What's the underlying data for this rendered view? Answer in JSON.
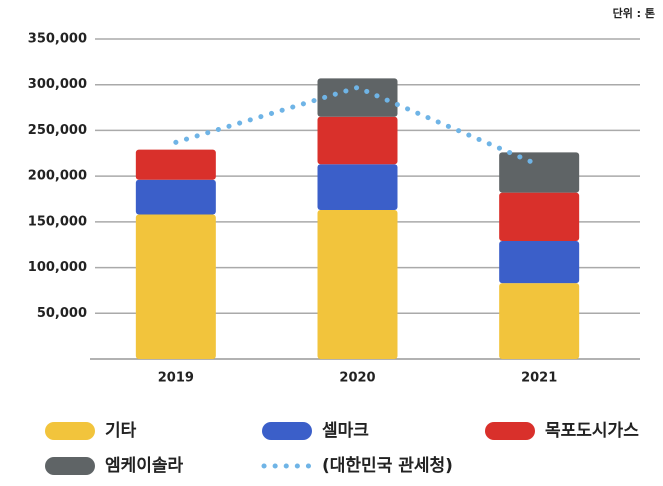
{
  "chart_data": {
    "type": "bar",
    "stacked": true,
    "unit": "단위 : 톤",
    "categories": [
      "2019",
      "2020",
      "2021"
    ],
    "series": [
      {
        "name": "기타",
        "color": "#f2c43c",
        "values": [
          158000,
          163000,
          83000
        ]
      },
      {
        "name": "셀마크",
        "color": "#3b5fc9",
        "values": [
          38000,
          50000,
          46000
        ]
      },
      {
        "name": "목포도시가스",
        "color": "#d9302b",
        "values": [
          33000,
          52000,
          53000
        ]
      },
      {
        "name": "엠케이솔라",
        "color": "#5f6466",
        "values": [
          0,
          42000,
          44000
        ]
      },
      {
        "name": "(대한민국 관세청)",
        "color": "#6fb4e6",
        "values": [
          237000,
          297000,
          212000
        ],
        "type": "line",
        "dotted": true
      }
    ],
    "ylim": [
      0,
      350000
    ],
    "yticks": [
      {
        "value": 50000,
        "label": "50,000"
      },
      {
        "value": 100000,
        "label": "100,000"
      },
      {
        "value": 150000,
        "label": "150,000"
      },
      {
        "value": 200000,
        "label": "200,000"
      },
      {
        "value": 250000,
        "label": "250,000"
      },
      {
        "value": 300000,
        "label": "300,000"
      },
      {
        "value": 350000,
        "label": "350,000"
      }
    ],
    "grid": true
  }
}
